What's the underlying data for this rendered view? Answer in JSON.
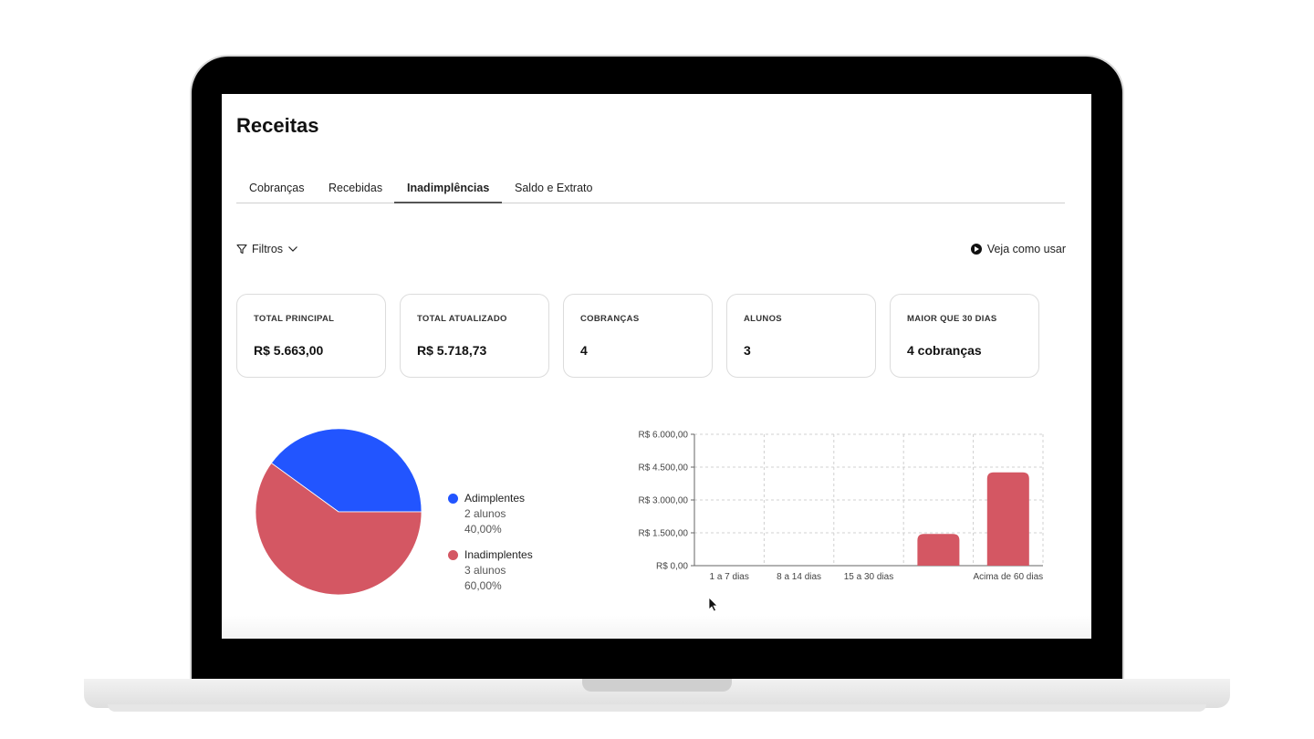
{
  "page": {
    "title": "Receitas"
  },
  "tabs": [
    {
      "label": "Cobranças"
    },
    {
      "label": "Recebidas"
    },
    {
      "label": "Inadimplências",
      "active": true
    },
    {
      "label": "Saldo e Extrato"
    }
  ],
  "toolbar": {
    "filters_label": "Filtros",
    "howto_label": "Veja como usar"
  },
  "cards": [
    {
      "label": "TOTAL PRINCIPAL",
      "value": "R$ 5.663,00"
    },
    {
      "label": "TOTAL ATUALIZADO",
      "value": "R$ 5.718,73"
    },
    {
      "label": "COBRANÇAS",
      "value": "4"
    },
    {
      "label": "ALUNOS",
      "value": "3"
    },
    {
      "label": "MAIOR QUE 30 DIAS",
      "value": "4 cobranças"
    }
  ],
  "chart_data": [
    {
      "type": "pie",
      "slices": [
        {
          "label": "Adimplentes",
          "count_label": "2 alunos",
          "pct_label": "40,00%",
          "value": 40,
          "color": "#2255ff"
        },
        {
          "label": "Inadimplentes",
          "count_label": "3 alunos",
          "pct_label": "60,00%",
          "value": 60,
          "color": "#d45763"
        }
      ]
    },
    {
      "type": "bar",
      "categories": [
        "1 a 7 dias",
        "8 a 14 dias",
        "15 a 30 dias",
        "",
        "Acima de 60 dias"
      ],
      "values": [
        0,
        0,
        0,
        1450,
        4260
      ],
      "ylim": [
        0,
        6000
      ],
      "yticks": [
        0,
        1500,
        3000,
        4500,
        6000
      ],
      "ytick_labels": [
        "R$ 0,00",
        "R$ 1.500,00",
        "R$ 3.000,00",
        "R$ 4.500,00",
        "R$ 6.000,00"
      ],
      "bar_color": "#d45763",
      "grid": true
    }
  ]
}
